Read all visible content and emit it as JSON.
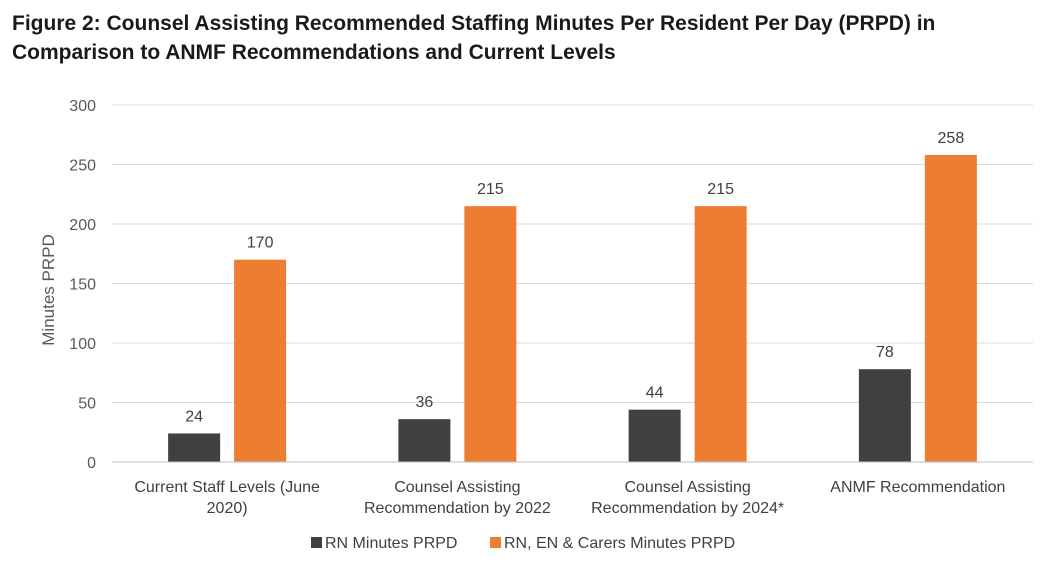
{
  "chart_data": {
    "type": "bar",
    "title": "Figure 2: Counsel Assisting Recommended Staffing Minutes Per Resident Per Day (PRPD) in Comparison to ANMF Recommendations and Current Levels",
    "categories": [
      [
        "Current Staff Levels (June",
        "2020)"
      ],
      [
        "Counsel Assisting",
        "Recommendation by 2022"
      ],
      [
        "Counsel Assisting",
        "Recommendation by 2024*"
      ],
      [
        "ANMF Recommendation"
      ]
    ],
    "series": [
      {
        "name": "RN Minutes PRPD",
        "color": "#404040",
        "values": [
          24,
          36,
          44,
          78
        ]
      },
      {
        "name": "RN, EN & Carers Minutes PRPD",
        "color": "#ed7d31",
        "values": [
          170,
          215,
          215,
          258
        ]
      }
    ],
    "xlabel": "",
    "ylabel": "Minutes PRPD",
    "ylim": [
      0,
      300
    ],
    "yticks": [
      0,
      50,
      100,
      150,
      200,
      250,
      300
    ],
    "grid": true,
    "legend_position": "bottom"
  }
}
